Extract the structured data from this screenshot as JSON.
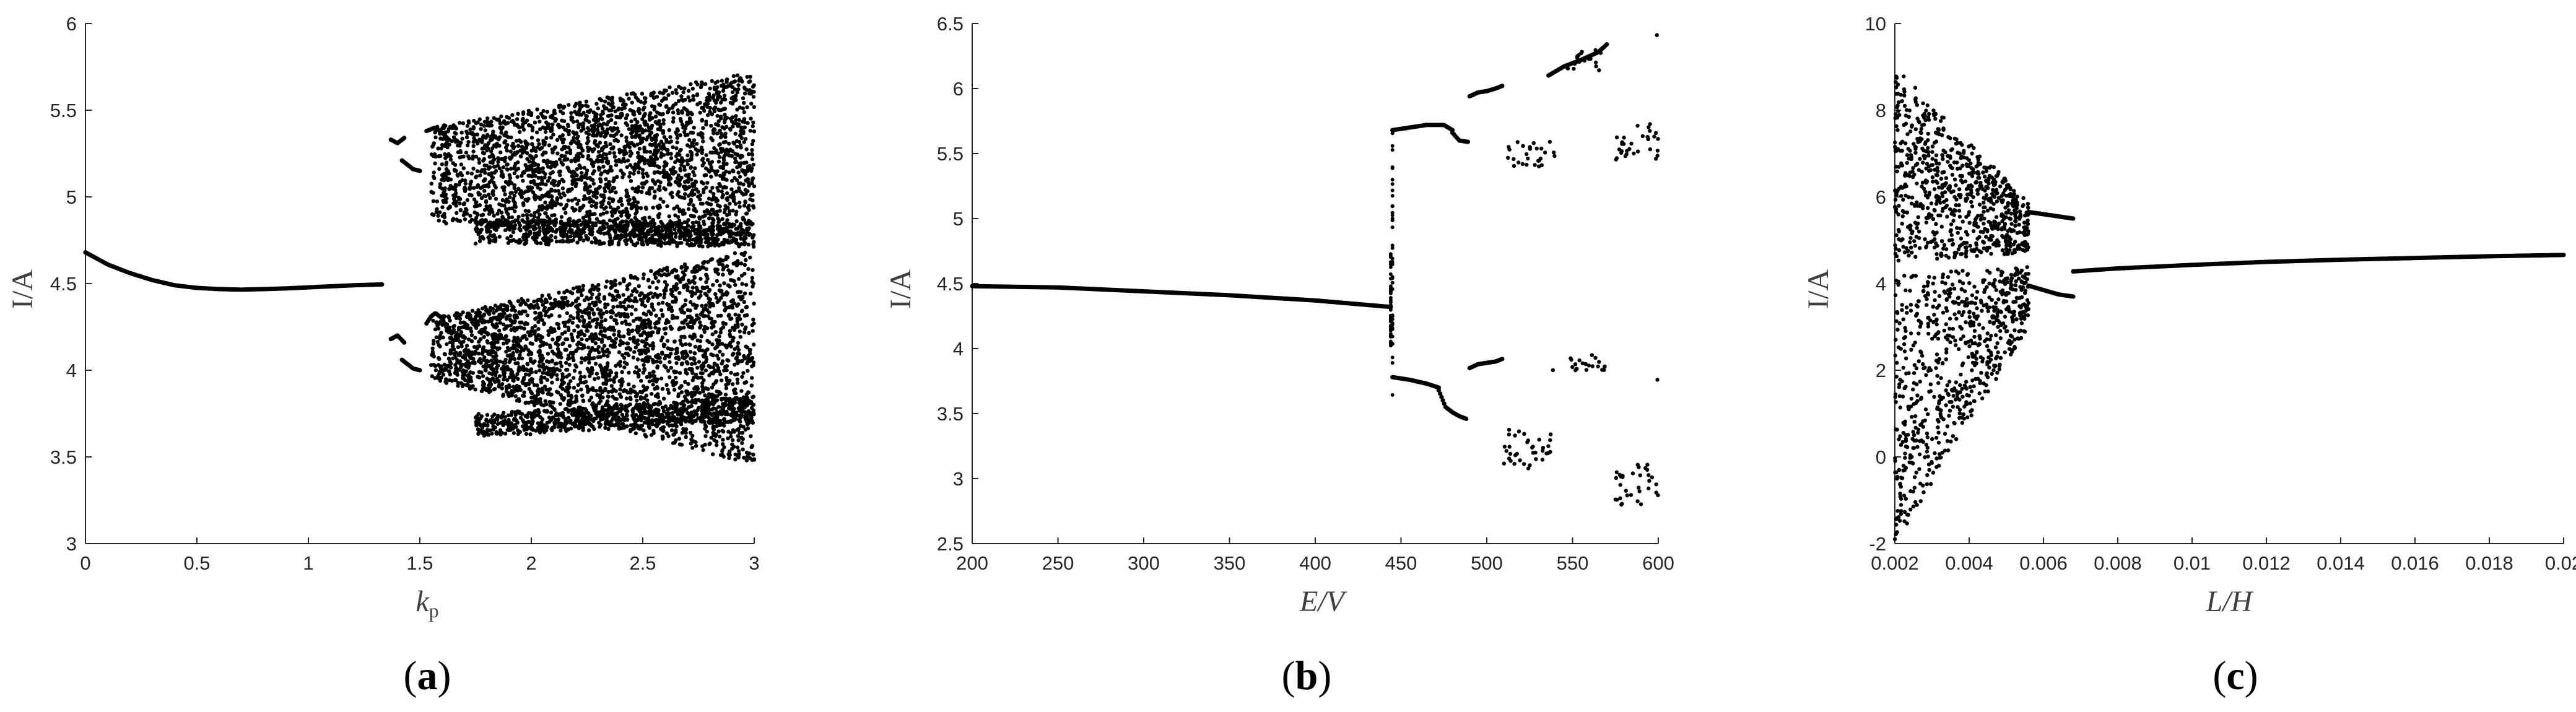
{
  "figure": {
    "background": "#ffffff",
    "axis_color": "#262626",
    "point_color": "#000000"
  },
  "chart_data": [
    {
      "type": "scatter",
      "panel_label": {
        "open": "(",
        "letter": "a",
        "close": ")"
      },
      "xlabel": {
        "main": "k",
        "sub": "p"
      },
      "ylabel": "I/A",
      "xlim": [
        0,
        3
      ],
      "ylim": [
        3,
        6
      ],
      "xticks": [
        {
          "value": 0,
          "label": "0"
        },
        {
          "value": 0.5,
          "label": "0.5"
        },
        {
          "value": 1,
          "label": "1"
        },
        {
          "value": 1.5,
          "label": "1.5"
        },
        {
          "value": 2,
          "label": "2"
        },
        {
          "value": 2.5,
          "label": "2.5"
        },
        {
          "value": 3,
          "label": "3"
        }
      ],
      "yticks": [
        {
          "value": 3,
          "label": "3"
        },
        {
          "value": 3.5,
          "label": "3.5"
        },
        {
          "value": 4,
          "label": "4"
        },
        {
          "value": 4.5,
          "label": "4.5"
        },
        {
          "value": 5,
          "label": "5"
        },
        {
          "value": 5.5,
          "label": "5.5"
        },
        {
          "value": 6,
          "label": "6"
        }
      ],
      "series": [
        {
          "kind": "branch",
          "x": [
            0,
            0.1,
            0.2,
            0.3,
            0.4,
            0.5,
            0.6,
            0.7,
            0.8,
            0.9,
            1.0,
            1.1,
            1.2,
            1.33
          ],
          "y": [
            4.68,
            4.61,
            4.56,
            4.52,
            4.49,
            4.475,
            4.468,
            4.465,
            4.468,
            4.472,
            4.478,
            4.484,
            4.49,
            4.495
          ]
        },
        {
          "kind": "branch",
          "x": [
            1.37,
            1.4,
            1.43
          ],
          "y": [
            5.33,
            5.31,
            5.34
          ]
        },
        {
          "kind": "branch",
          "x": [
            1.42,
            1.45,
            1.47,
            1.5
          ],
          "y": [
            5.21,
            5.18,
            5.16,
            5.15
          ]
        },
        {
          "kind": "branch",
          "x": [
            1.37,
            1.4,
            1.43
          ],
          "y": [
            4.18,
            4.2,
            4.16
          ]
        },
        {
          "kind": "branch",
          "x": [
            1.42,
            1.45,
            1.47,
            1.5
          ],
          "y": [
            4.06,
            4.03,
            4.01,
            4.0
          ]
        },
        {
          "kind": "branch",
          "x": [
            1.53,
            1.55,
            1.57,
            1.6,
            1.63
          ],
          "y": [
            5.38,
            5.39,
            5.4,
            5.37,
            5.33
          ]
        },
        {
          "kind": "branch",
          "x": [
            1.53,
            1.55,
            1.57,
            1.6,
            1.63
          ],
          "y": [
            4.27,
            4.31,
            4.33,
            4.3,
            4.22
          ]
        },
        {
          "kind": "cloud",
          "x_range": [
            1.55,
            3.0
          ],
          "upper_start": [
            5.4,
            4.85
          ],
          "upper_end": [
            5.72,
            4.72
          ],
          "lower_start": [
            4.3,
            3.95
          ],
          "lower_end": [
            4.7,
            3.45
          ],
          "dense_lines": [
            {
              "x": [
                1.75,
                3.0
              ],
              "y": [
                4.8,
                4.78
              ]
            },
            {
              "x": [
                1.75,
                3.0
              ],
              "y": [
                3.68,
                3.78
              ]
            }
          ]
        }
      ]
    },
    {
      "type": "scatter",
      "panel_label": {
        "open": "(",
        "letter": "b",
        "close": ")"
      },
      "xlabel": {
        "main": "E/V",
        "sub": ""
      },
      "ylabel": "I/A",
      "xlim": [
        200,
        600
      ],
      "ylim": [
        2.5,
        6.5
      ],
      "xticks": [
        {
          "value": 200,
          "label": "200"
        },
        {
          "value": 250,
          "label": "250"
        },
        {
          "value": 300,
          "label": "300"
        },
        {
          "value": 350,
          "label": "350"
        },
        {
          "value": 400,
          "label": "400"
        },
        {
          "value": 450,
          "label": "450"
        },
        {
          "value": 500,
          "label": "500"
        },
        {
          "value": 550,
          "label": "550"
        },
        {
          "value": 600,
          "label": "600"
        }
      ],
      "yticks": [
        {
          "value": 2.5,
          "label": "2.5"
        },
        {
          "value": 3,
          "label": "3"
        },
        {
          "value": 3.5,
          "label": "3.5"
        },
        {
          "value": 4,
          "label": "4"
        },
        {
          "value": 4.5,
          "label": "4.5"
        },
        {
          "value": 5,
          "label": "5"
        },
        {
          "value": 5.5,
          "label": "5.5"
        },
        {
          "value": 6,
          "label": "6"
        },
        {
          "value": 6.5,
          "label": "6.5"
        }
      ],
      "series": [
        {
          "kind": "branch",
          "x": [
            200,
            250,
            300,
            350,
            400,
            444
          ],
          "y": [
            4.48,
            4.47,
            4.44,
            4.41,
            4.37,
            4.32
          ]
        },
        {
          "kind": "branch",
          "x": [
            445,
            455,
            465,
            475,
            480
          ],
          "y": [
            5.68,
            5.7,
            5.72,
            5.72,
            5.68
          ]
        },
        {
          "kind": "branch",
          "x": [
            480,
            484,
            489
          ],
          "y": [
            5.66,
            5.6,
            5.59
          ]
        },
        {
          "kind": "branch",
          "x": [
            445,
            455,
            465,
            472
          ],
          "y": [
            3.78,
            3.76,
            3.73,
            3.7
          ]
        },
        {
          "kind": "branch",
          "x": [
            472,
            476,
            480,
            484,
            488
          ],
          "y": [
            3.68,
            3.55,
            3.51,
            3.48,
            3.46
          ]
        },
        {
          "kind": "branch",
          "x": [
            490,
            495,
            500,
            505,
            509
          ],
          "y": [
            5.94,
            5.97,
            5.98,
            6.0,
            6.02
          ]
        },
        {
          "kind": "branch",
          "x": [
            490,
            495,
            500,
            505,
            509
          ],
          "y": [
            3.85,
            3.88,
            3.89,
            3.9,
            3.92
          ]
        },
        {
          "kind": "cloud",
          "x_range": [
            510,
            540
          ],
          "y_range": [
            5.38,
            5.6
          ]
        },
        {
          "kind": "cloud",
          "x_range": [
            510,
            538
          ],
          "y_range": [
            3.07,
            3.38
          ]
        },
        {
          "kind": "branch",
          "x": [
            536,
            545,
            555,
            565,
            570
          ],
          "y": [
            6.1,
            6.17,
            6.22,
            6.28,
            6.34
          ]
        },
        {
          "kind": "cloud",
          "x_range": [
            545,
            568
          ],
          "y_range": [
            6.1,
            6.3
          ]
        },
        {
          "kind": "cloud",
          "x_range": [
            538,
            570
          ],
          "y_range": [
            3.8,
            3.96
          ]
        },
        {
          "kind": "cloud",
          "x_range": [
            575,
            600
          ],
          "y_range": [
            5.45,
            5.75
          ]
        },
        {
          "kind": "cloud",
          "x_range": [
            575,
            600
          ],
          "y_range": [
            2.8,
            3.12
          ]
        },
        {
          "kind": "cloud",
          "x_range": [
            597,
            600
          ],
          "y_range": [
            6.35,
            6.42
          ]
        },
        {
          "kind": "cloud",
          "x_range": [
            597,
            600
          ],
          "y_range": [
            3.7,
            3.8
          ]
        },
        {
          "kind": "vertical",
          "x": 445,
          "y_range": [
            3.6,
            5.7
          ]
        },
        {
          "kind": "vertical",
          "x": 444,
          "y_range": [
            4.0,
            4.75
          ]
        }
      ]
    },
    {
      "type": "scatter",
      "panel_label": {
        "open": "(",
        "letter": "c",
        "close": ")"
      },
      "xlabel": {
        "main": "L/H",
        "sub": ""
      },
      "ylabel": "I/A",
      "xlim": [
        0.002,
        0.02
      ],
      "ylim": [
        -2,
        10
      ],
      "xticks": [
        {
          "value": 0.002,
          "label": "0.002"
        },
        {
          "value": 0.004,
          "label": "0.004"
        },
        {
          "value": 0.006,
          "label": "0.006"
        },
        {
          "value": 0.008,
          "label": "0.008"
        },
        {
          "value": 0.01,
          "label": "0.01"
        },
        {
          "value": 0.012,
          "label": "0.012"
        },
        {
          "value": 0.014,
          "label": "0.014"
        },
        {
          "value": 0.016,
          "label": "0.016"
        },
        {
          "value": 0.018,
          "label": "0.018"
        },
        {
          "value": 0.02,
          "label": "0.02"
        }
      ],
      "yticks": [
        {
          "value": -2,
          "label": "-2"
        },
        {
          "value": 0,
          "label": "0"
        },
        {
          "value": 2,
          "label": "2"
        },
        {
          "value": 4,
          "label": "4"
        },
        {
          "value": 6,
          "label": "6"
        },
        {
          "value": 8,
          "label": "8"
        },
        {
          "value": 10,
          "label": "10"
        }
      ],
      "series": [
        {
          "kind": "branch",
          "x": [
            0.0068,
            0.008,
            0.01,
            0.012,
            0.014,
            0.016,
            0.018,
            0.02
          ],
          "y": [
            4.28,
            4.35,
            4.43,
            4.5,
            4.55,
            4.59,
            4.63,
            4.66
          ]
        },
        {
          "kind": "branch",
          "x": [
            0.0056,
            0.006,
            0.0064,
            0.0068
          ],
          "y": [
            5.65,
            5.6,
            5.55,
            5.5
          ]
        },
        {
          "kind": "branch",
          "x": [
            0.0056,
            0.006,
            0.0064,
            0.0068
          ],
          "y": [
            3.95,
            3.85,
            3.75,
            3.7
          ]
        },
        {
          "kind": "funnel",
          "x_range": [
            0.002,
            0.0056
          ],
          "upper_start": [
            9.0,
            4.5
          ],
          "upper_end": [
            5.9,
            4.7
          ],
          "lower_start": [
            4.2,
            -2.0
          ],
          "lower_end": [
            4.4,
            3.0
          ]
        }
      ]
    }
  ]
}
